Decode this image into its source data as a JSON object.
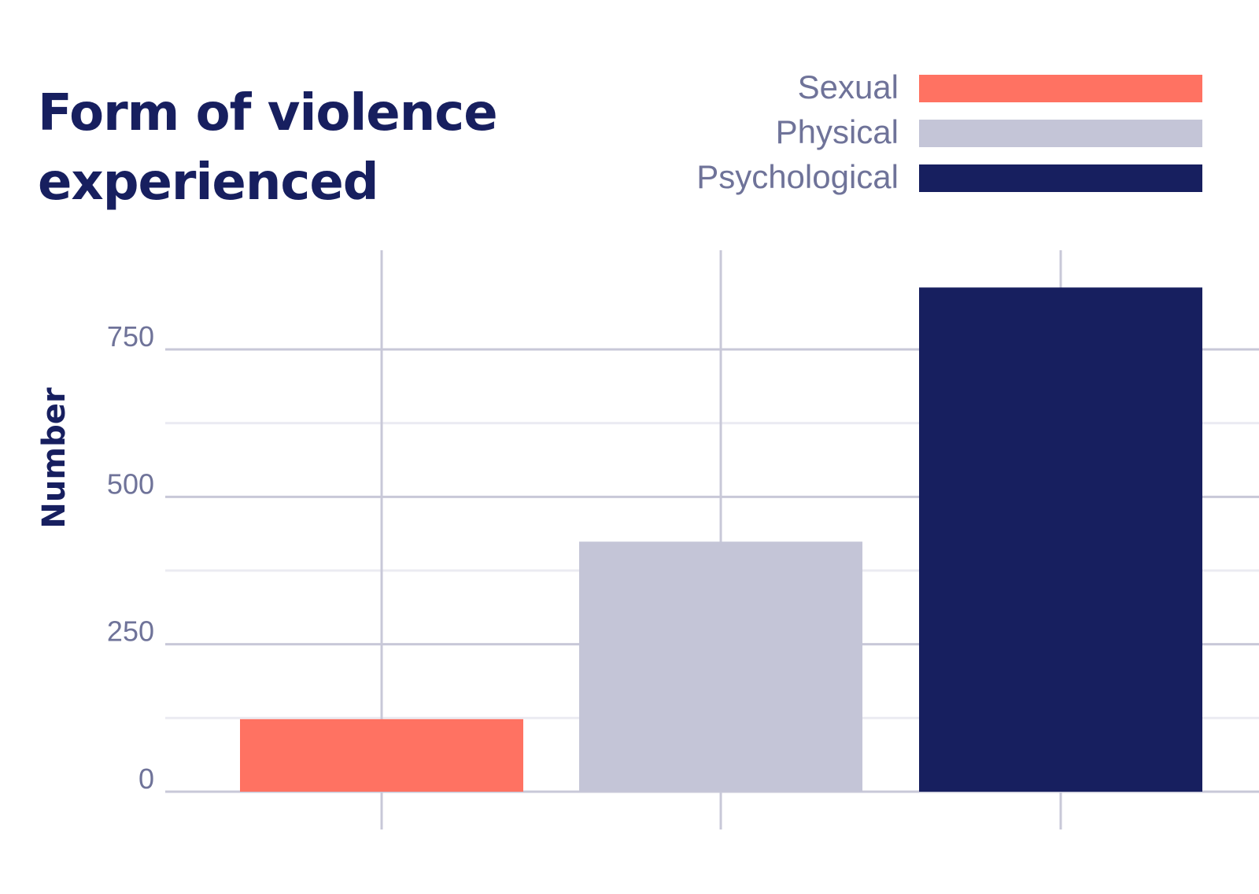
{
  "chart_data": {
    "type": "bar",
    "title": "Form of violence\nexperienced",
    "ylabel": "Number",
    "xlabel": "",
    "categories": [
      "Sexual",
      "Physical",
      "Psychological"
    ],
    "values": [
      123,
      424,
      855
    ],
    "colors": [
      "#ff7262",
      "#c4c5d7",
      "#171f5f"
    ],
    "ylim": [
      0,
      870
    ],
    "yticks": [
      0,
      250,
      500,
      750
    ],
    "ytick_labels": [
      "0",
      "250",
      "500",
      "750"
    ],
    "legend": {
      "placement": "top-right",
      "entries": [
        "Sexual",
        "Physical",
        "Psychological"
      ]
    },
    "grid": true
  },
  "colors": {
    "title": "#171f5f",
    "muted_text": "#6f7399",
    "grid_major": "#c8c8d8",
    "grid_minor": "#ebebf2"
  }
}
